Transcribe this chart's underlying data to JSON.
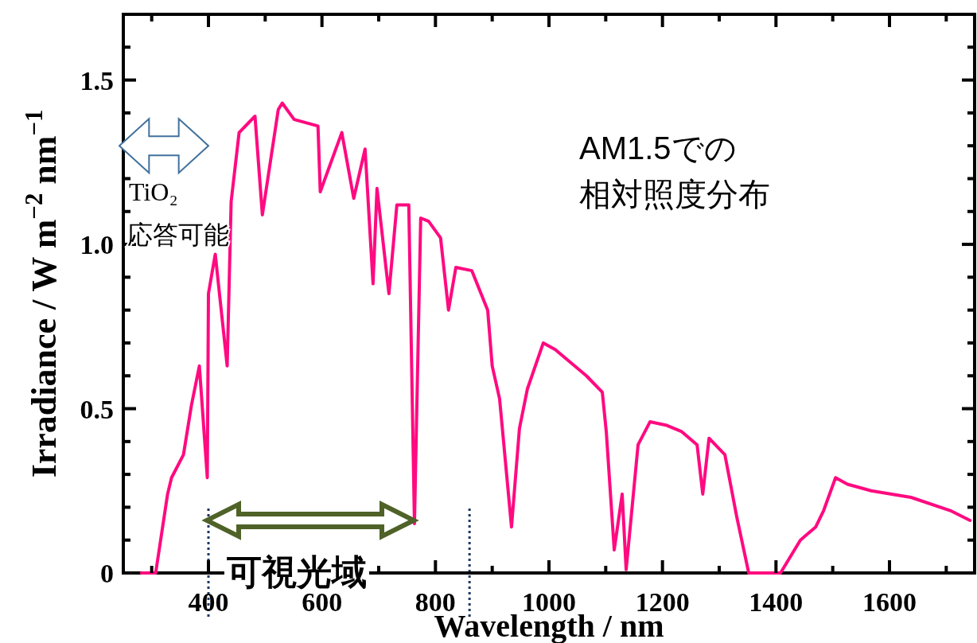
{
  "chart_data": {
    "type": "line",
    "xlabel": "Wavelength / nm",
    "ylabel": "Irradiance / W m$^{−2}$ nm$^{−1}$",
    "annotations": [
      "AM1.5での",
      "相対照度分布",
      "TiO₂",
      "応答可能",
      "可視光域"
    ],
    "xlim": [
      250,
      1750
    ],
    "ylim": [
      0,
      1.7
    ],
    "xticks": [
      {
        "value": 300,
        "label": null
      },
      400,
      {
        "value": 500,
        "label": null
      },
      600,
      {
        "value": 700,
        "label": null
      },
      800,
      {
        "value": 900,
        "label": null
      },
      1000,
      {
        "value": 1100,
        "label": null
      },
      1200,
      {
        "value": 1300,
        "label": null
      },
      1400,
      {
        "value": 1500,
        "label": null
      },
      1600,
      {
        "value": 1700,
        "label": null
      }
    ],
    "yticks": [
      {
        "value": 0,
        "label": "0"
      },
      {
        "value": 0.1,
        "label": null
      },
      {
        "value": 0.2,
        "label": null
      },
      {
        "value": 0.3,
        "label": null
      },
      {
        "value": 0.4,
        "label": null
      },
      {
        "value": 0.5,
        "label": "0.5"
      },
      {
        "value": 0.6,
        "label": null
      },
      {
        "value": 0.7,
        "label": null
      },
      {
        "value": 0.8,
        "label": null
      },
      {
        "value": 0.9,
        "label": null
      },
      {
        "value": 1,
        "label": "1.0"
      },
      {
        "value": 1.1,
        "label": null
      },
      {
        "value": 1.2,
        "label": null
      },
      {
        "value": 1.3,
        "label": null
      },
      {
        "value": 1.4,
        "label": null
      },
      {
        "value": 1.5,
        "label": "1.5"
      },
      {
        "value": 1.6,
        "label": null
      }
    ],
    "grid": false,
    "marker": "none",
    "line_style": "solid",
    "ref_lines": [
      {
        "axis": "x",
        "value": 400,
        "color": "#1f3864",
        "line_style": "dotted"
      },
      {
        "axis": "x",
        "value": 860,
        "color": "#1f3864",
        "line_style": "dotted"
      }
    ],
    "series": [
      {
        "color": "#ff0a80",
        "x": [
          282,
          307,
          328,
          335,
          356,
          370,
          384,
          398,
          400,
          412,
          433,
          440,
          454,
          482,
          495,
          523,
          530,
          551,
          593,
          597,
          635,
          656,
          676,
          690,
          697,
          718,
          732,
          753,
          763,
          774,
          788,
          809,
          823,
          836,
          864,
          892,
          900,
          913,
          934,
          948,
          962,
          990,
          1011,
          1066,
          1094,
          1101,
          1115,
          1129,
          1136,
          1157,
          1178,
          1206,
          1234,
          1261,
          1271,
          1282,
          1310,
          1331,
          1352,
          1408,
          1443,
          1470,
          1484,
          1505,
          1526,
          1568,
          1638,
          1707,
          1742
        ],
        "values": [
          0,
          0,
          0.24,
          0.29,
          0.36,
          0.51,
          0.63,
          0.29,
          0.85,
          0.97,
          0.63,
          1.13,
          1.34,
          1.39,
          1.09,
          1.41,
          1.43,
          1.38,
          1.36,
          1.16,
          1.34,
          1.14,
          1.29,
          0.88,
          1.17,
          0.85,
          1.12,
          1.12,
          0.15,
          1.08,
          1.07,
          1.02,
          0.8,
          0.93,
          0.92,
          0.8,
          0.63,
          0.53,
          0.14,
          0.44,
          0.56,
          0.7,
          0.68,
          0.6,
          0.55,
          0.43,
          0.07,
          0.24,
          0.01,
          0.39,
          0.46,
          0.45,
          0.43,
          0.39,
          0.24,
          0.41,
          0.36,
          0.17,
          0,
          0,
          0.1,
          0.14,
          0.19,
          0.29,
          0.27,
          0.25,
          0.23,
          0.19,
          0.16
        ]
      }
    ]
  }
}
